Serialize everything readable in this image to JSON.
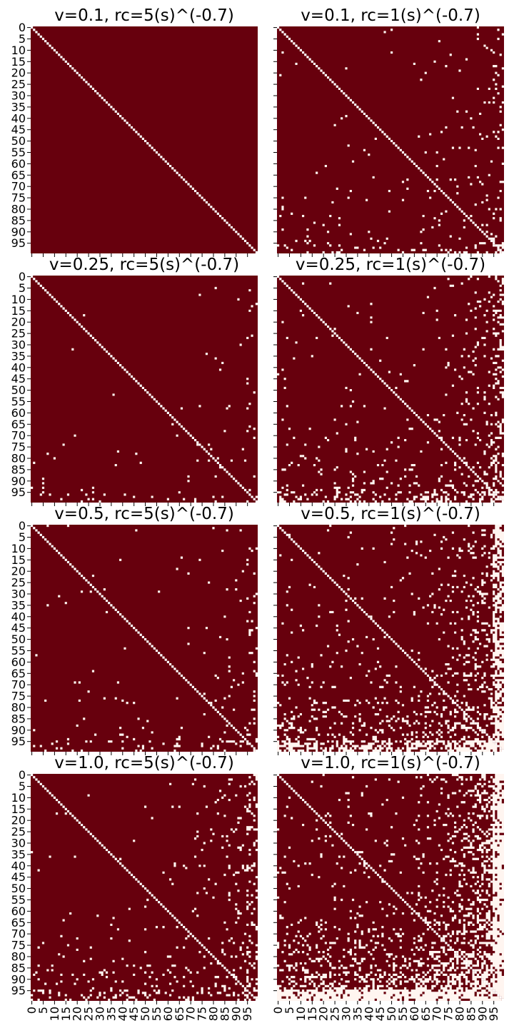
{
  "chart_data": [
    {
      "type": "heatmap",
      "title": "v=0.1, rc=5(s)^(-0.7)",
      "n": 100,
      "v": 0.1,
      "rc_coefficient": 5,
      "exponent": -0.7,
      "diagonal": "white",
      "off_diagonal": "dark red",
      "sparsity": 0.0
    },
    {
      "type": "heatmap",
      "title": "v=0.1, rc=1(s)^(-0.7)",
      "n": 100,
      "v": 0.1,
      "rc_coefficient": 1,
      "exponent": -0.7,
      "diagonal": "white",
      "off_diagonal": "dark red",
      "sparsity": 0.03
    },
    {
      "type": "heatmap",
      "title": "v=0.25, rc=5(s)^(-0.7)",
      "n": 100,
      "v": 0.25,
      "rc_coefficient": 5,
      "exponent": -0.7,
      "diagonal": "white",
      "off_diagonal": "dark red",
      "sparsity": 0.01
    },
    {
      "type": "heatmap",
      "title": "v=0.25, rc=1(s)^(-0.7)",
      "n": 100,
      "v": 0.25,
      "rc_coefficient": 1,
      "exponent": -0.7,
      "diagonal": "white",
      "off_diagonal": "dark red",
      "sparsity": 0.07
    },
    {
      "type": "heatmap",
      "title": "v=0.5, rc=5(s)^(-0.7)",
      "n": 100,
      "v": 0.5,
      "rc_coefficient": 5,
      "exponent": -0.7,
      "diagonal": "white",
      "off_diagonal": "dark red",
      "sparsity": 0.02
    },
    {
      "type": "heatmap",
      "title": "v=0.5, rc=1(s)^(-0.7)",
      "n": 100,
      "v": 0.5,
      "rc_coefficient": 1,
      "exponent": -0.7,
      "diagonal": "white",
      "off_diagonal": "dark red",
      "sparsity": 0.16
    },
    {
      "type": "heatmap",
      "title": "v=1.0, rc=5(s)^(-0.7)",
      "n": 100,
      "v": 1.0,
      "rc_coefficient": 5,
      "exponent": -0.7,
      "diagonal": "white",
      "off_diagonal": "dark red",
      "sparsity": 0.05
    },
    {
      "type": "heatmap",
      "title": "v=1.0, rc=1(s)^(-0.7)",
      "n": 100,
      "v": 1.0,
      "rc_coefficient": 1,
      "exponent": -0.7,
      "diagonal": "white",
      "off_diagonal": "dark red",
      "sparsity": 0.3
    }
  ],
  "layout_grid": {
    "rows": 4,
    "cols": 2
  },
  "tick_labels": [
    "0",
    "5",
    "10",
    "15",
    "20",
    "25",
    "30",
    "35",
    "40",
    "45",
    "50",
    "55",
    "60",
    "65",
    "70",
    "75",
    "80",
    "85",
    "90",
    "95"
  ],
  "tick_values": [
    0,
    5,
    10,
    15,
    20,
    25,
    30,
    35,
    40,
    45,
    50,
    55,
    60,
    65,
    70,
    75,
    80,
    85,
    90,
    95
  ],
  "colors": {
    "filled": "#67000d",
    "empty": "#fff5f0"
  }
}
